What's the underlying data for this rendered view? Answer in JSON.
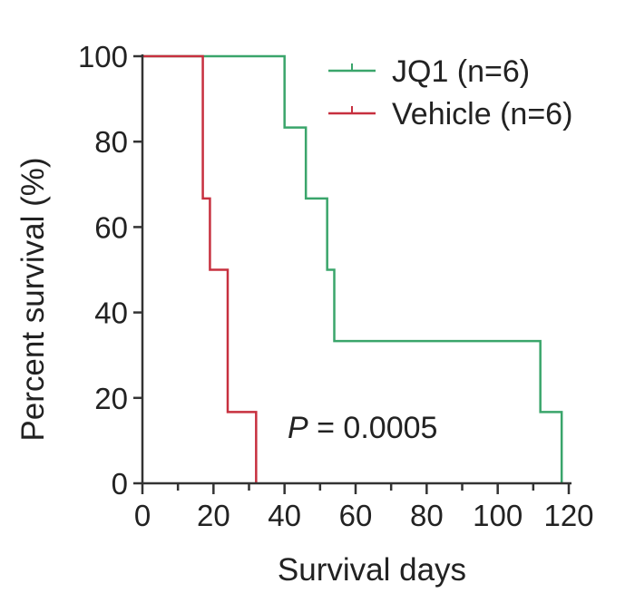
{
  "chart_data": {
    "type": "line",
    "subtype": "kaplan-meier-step",
    "xlabel": "Survival days",
    "ylabel": "Percent survival (%)",
    "xlim": [
      0,
      120
    ],
    "ylim": [
      0,
      100
    ],
    "xticks": [
      0,
      20,
      40,
      60,
      80,
      100,
      120
    ],
    "xminor_step": 10,
    "yticks": [
      0,
      20,
      40,
      60,
      80,
      100
    ],
    "grid": false,
    "legend_position": "top-right",
    "annotation": {
      "italic": "P",
      "text": " = 0.0005"
    },
    "series": [
      {
        "name": "JQ1 (n=6)",
        "color": "#3aa56b",
        "steps": [
          [
            0,
            100
          ],
          [
            40,
            83.3
          ],
          [
            46,
            66.7
          ],
          [
            52,
            50
          ],
          [
            54,
            33.3
          ],
          [
            112,
            16.7
          ],
          [
            118,
            0
          ]
        ]
      },
      {
        "name": "Vehicle (n=6)",
        "color": "#c7303f",
        "steps": [
          [
            0,
            100
          ],
          [
            17,
            66.7
          ],
          [
            19,
            50
          ],
          [
            24,
            16.7
          ],
          [
            32,
            0
          ]
        ]
      }
    ]
  }
}
